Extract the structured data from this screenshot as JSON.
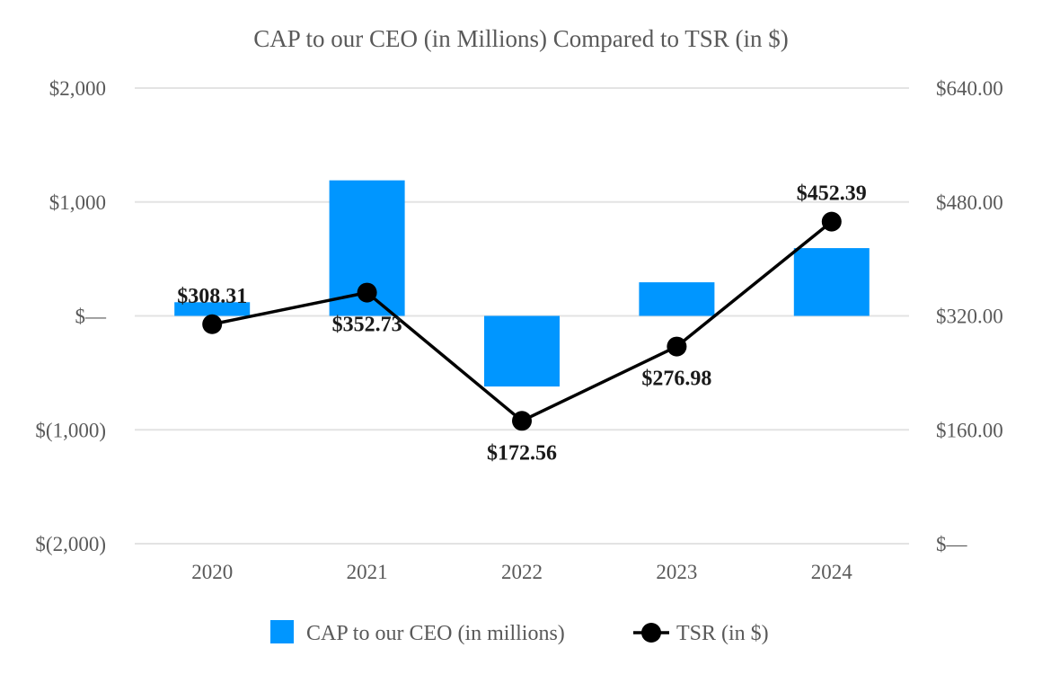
{
  "chart_data": {
    "type": "bar",
    "title": "CAP to our CEO (in Millions) Compared to TSR (in $)",
    "categories": [
      "2020",
      "2021",
      "2022",
      "2023",
      "2024"
    ],
    "series": [
      {
        "name": "CAP to our CEO (in millions)",
        "type": "bar",
        "axis": "left",
        "color": "#0096ff",
        "values": [
          120,
          1190,
          -620,
          295,
          595
        ]
      },
      {
        "name": "TSR (in $)",
        "type": "line",
        "axis": "right",
        "color": "#000000",
        "values": [
          308.31,
          352.73,
          172.56,
          276.98,
          452.39
        ],
        "labels": [
          "$308.31",
          "$352.73",
          "$172.56",
          "$276.98",
          "$452.39"
        ],
        "label_positions": [
          "above",
          "below",
          "below",
          "below",
          "above"
        ]
      }
    ],
    "y_left": {
      "range": [
        -2000,
        2000
      ],
      "ticks": [
        2000,
        1000,
        0,
        -1000,
        -2000
      ],
      "tick_labels": [
        "$2,000",
        "$1,000",
        "$—",
        "$(1,000)",
        "$(2,000)"
      ]
    },
    "y_right": {
      "range": [
        0,
        640
      ],
      "ticks": [
        640,
        480,
        320,
        160,
        0
      ],
      "tick_labels": [
        "$640.00",
        "$480.00",
        "$320.00",
        "$160.00",
        "$—"
      ]
    },
    "grid": true,
    "legend": "bottom-center"
  }
}
